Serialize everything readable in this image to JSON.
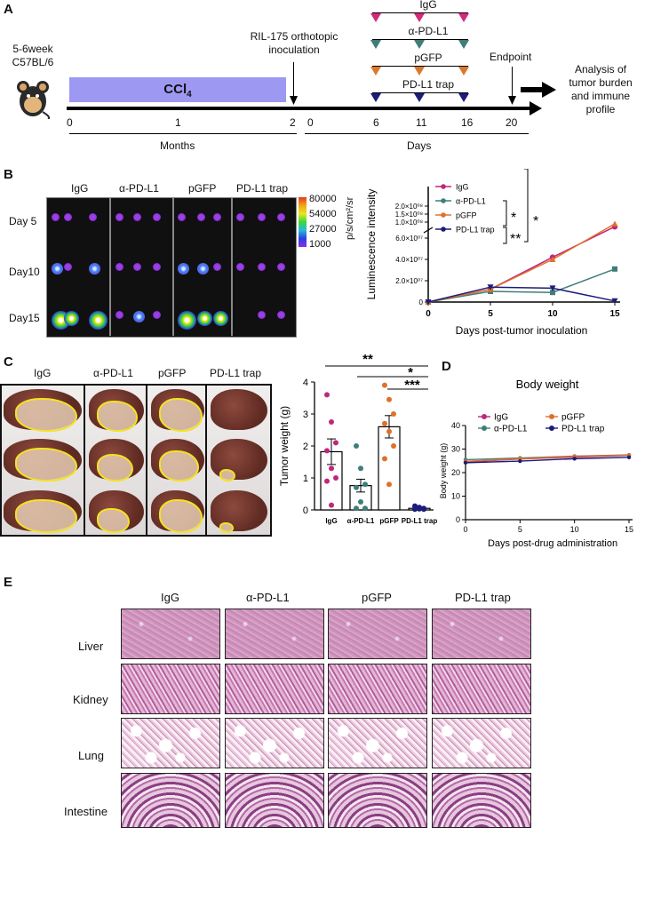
{
  "panels": {
    "a": "A",
    "b": "B",
    "c": "C",
    "d": "D",
    "e": "E"
  },
  "panel_a": {
    "mouse_strain_line1": "5-6week",
    "mouse_strain_line2": "C57BL/6",
    "ccl4": "CCl",
    "ccl4_sub": "4",
    "inoculation_line1": "RIL-175 orthotopic",
    "inoculation_line2": "inoculation",
    "endpoint": "Endpoint",
    "analysis_line1": "Analysis of",
    "analysis_line2": "tumor burden",
    "analysis_line3": "and immune",
    "analysis_line4": "profile",
    "treatments": [
      "IgG",
      "α-PD-L1",
      "pGFP",
      "PD-L1 trap"
    ],
    "treatment_colors": [
      "#d6287d",
      "#3f7e78",
      "#d97a2b",
      "#1c1c7a"
    ],
    "months_ticks": [
      "0",
      "1",
      "2"
    ],
    "days_ticks": [
      "0",
      "6",
      "11",
      "16",
      "20"
    ],
    "months_label": "Months",
    "days_label": "Days"
  },
  "panel_b": {
    "groups": [
      "IgG",
      "α-PD-L1",
      "pGFP",
      "PD-L1 trap"
    ],
    "days": [
      "Day 5",
      "Day10",
      "Day15"
    ],
    "scale_values": [
      "80000",
      "54000",
      "27000",
      "1000"
    ],
    "scale_unit": "p/s/cm²/sr"
  },
  "panel_c": {
    "groups": [
      "IgG",
      "α-PD-L1",
      "pGFP",
      "PD-L1 trap"
    ],
    "sig": [
      "**",
      "*",
      "***"
    ]
  },
  "panel_e": {
    "groups": [
      "IgG",
      "α-PD-L1",
      "pGFP",
      "PD-L1 trap"
    ],
    "organs": [
      "Liver",
      "Kidney",
      "Lung",
      "Intestine"
    ]
  },
  "chart_data": [
    {
      "id": "luminescence",
      "type": "line",
      "xlabel": "Days post-tumor inoculation",
      "ylabel": "Luminescence intensity",
      "x": [
        0,
        5,
        10,
        15
      ],
      "y_ticks_lower": [
        "0",
        "2.0×10⁰⁷",
        "4.0×10⁰⁷",
        "6.0×10⁰⁷"
      ],
      "y_ticks_upper": [
        "1.0×10⁰⁸",
        "1.5×10⁰⁸",
        "2.0×10⁰⁸"
      ],
      "legend_placement": "top-left",
      "series": [
        {
          "name": "IgG",
          "color": "#c0267a",
          "marker": "circle",
          "values": [
            0,
            12000000,
            42000000,
            72000000
          ]
        },
        {
          "name": "α-PD-L1",
          "color": "#3f7e78",
          "marker": "square",
          "values": [
            0,
            10000000,
            9000000,
            31000000
          ]
        },
        {
          "name": "pGFP",
          "color": "#e0702a",
          "marker": "triangle-up",
          "values": [
            0,
            12000000,
            40000000,
            80000000
          ]
        },
        {
          "name": "PD-L1 trap",
          "color": "#1c1c7a",
          "marker": "triangle-down",
          "values": [
            0,
            14000000,
            13000000,
            1000000
          ]
        }
      ],
      "significance": [
        "*",
        "**",
        "*"
      ]
    },
    {
      "id": "tumor_weight",
      "type": "bar",
      "ylabel": "Tumor weight (g)",
      "ylim": [
        0,
        4
      ],
      "y_ticks": [
        "0",
        "1",
        "2",
        "3",
        "4"
      ],
      "categories": [
        "IgG",
        "α-PD-L1",
        "pGFP",
        "PD-L1 trap"
      ],
      "values": [
        1.82,
        0.76,
        2.6,
        0.05
      ],
      "errors": [
        0.4,
        0.2,
        0.35,
        0.02
      ],
      "colors": [
        "#c0267a",
        "#3f7e78",
        "#e0702a",
        "#1c1c7a"
      ],
      "points": [
        [
          3.6,
          2.75,
          2.1,
          1.85,
          1.3,
          1.0,
          0.9,
          0.15
        ],
        [
          2.0,
          1.3,
          0.8,
          0.7,
          0.25,
          0.05,
          0.05
        ],
        [
          3.9,
          3.45,
          3.0,
          2.7,
          2.45,
          2.0,
          1.6,
          0.8
        ],
        [
          0.12,
          0.08,
          0.05,
          0.04,
          0.03,
          0.02,
          0.02
        ]
      ]
    },
    {
      "id": "body_weight",
      "type": "line",
      "title": "Body weight",
      "xlabel": "Days post-drug administration",
      "ylabel": "Body weight (g)",
      "ylim": [
        0,
        40
      ],
      "y_ticks": [
        "0",
        "10",
        "20",
        "30",
        "40"
      ],
      "x_ticks": [
        "0",
        "5",
        "10",
        "15"
      ],
      "x": [
        0,
        5,
        10,
        15
      ],
      "legend_placement": "top",
      "series": [
        {
          "name": "IgG",
          "color": "#c0267a",
          "values": [
            24.5,
            25.8,
            26.6,
            27.3
          ]
        },
        {
          "name": "α-PD-L1",
          "color": "#3f7e78",
          "values": [
            25.5,
            26.2,
            27.0,
            27.5
          ]
        },
        {
          "name": "pGFP",
          "color": "#e0702a",
          "values": [
            24.8,
            25.9,
            26.9,
            27.4
          ]
        },
        {
          "name": "PD-L1 trap",
          "color": "#1c1c7a",
          "values": [
            24.2,
            24.9,
            25.9,
            26.5
          ]
        }
      ]
    }
  ]
}
